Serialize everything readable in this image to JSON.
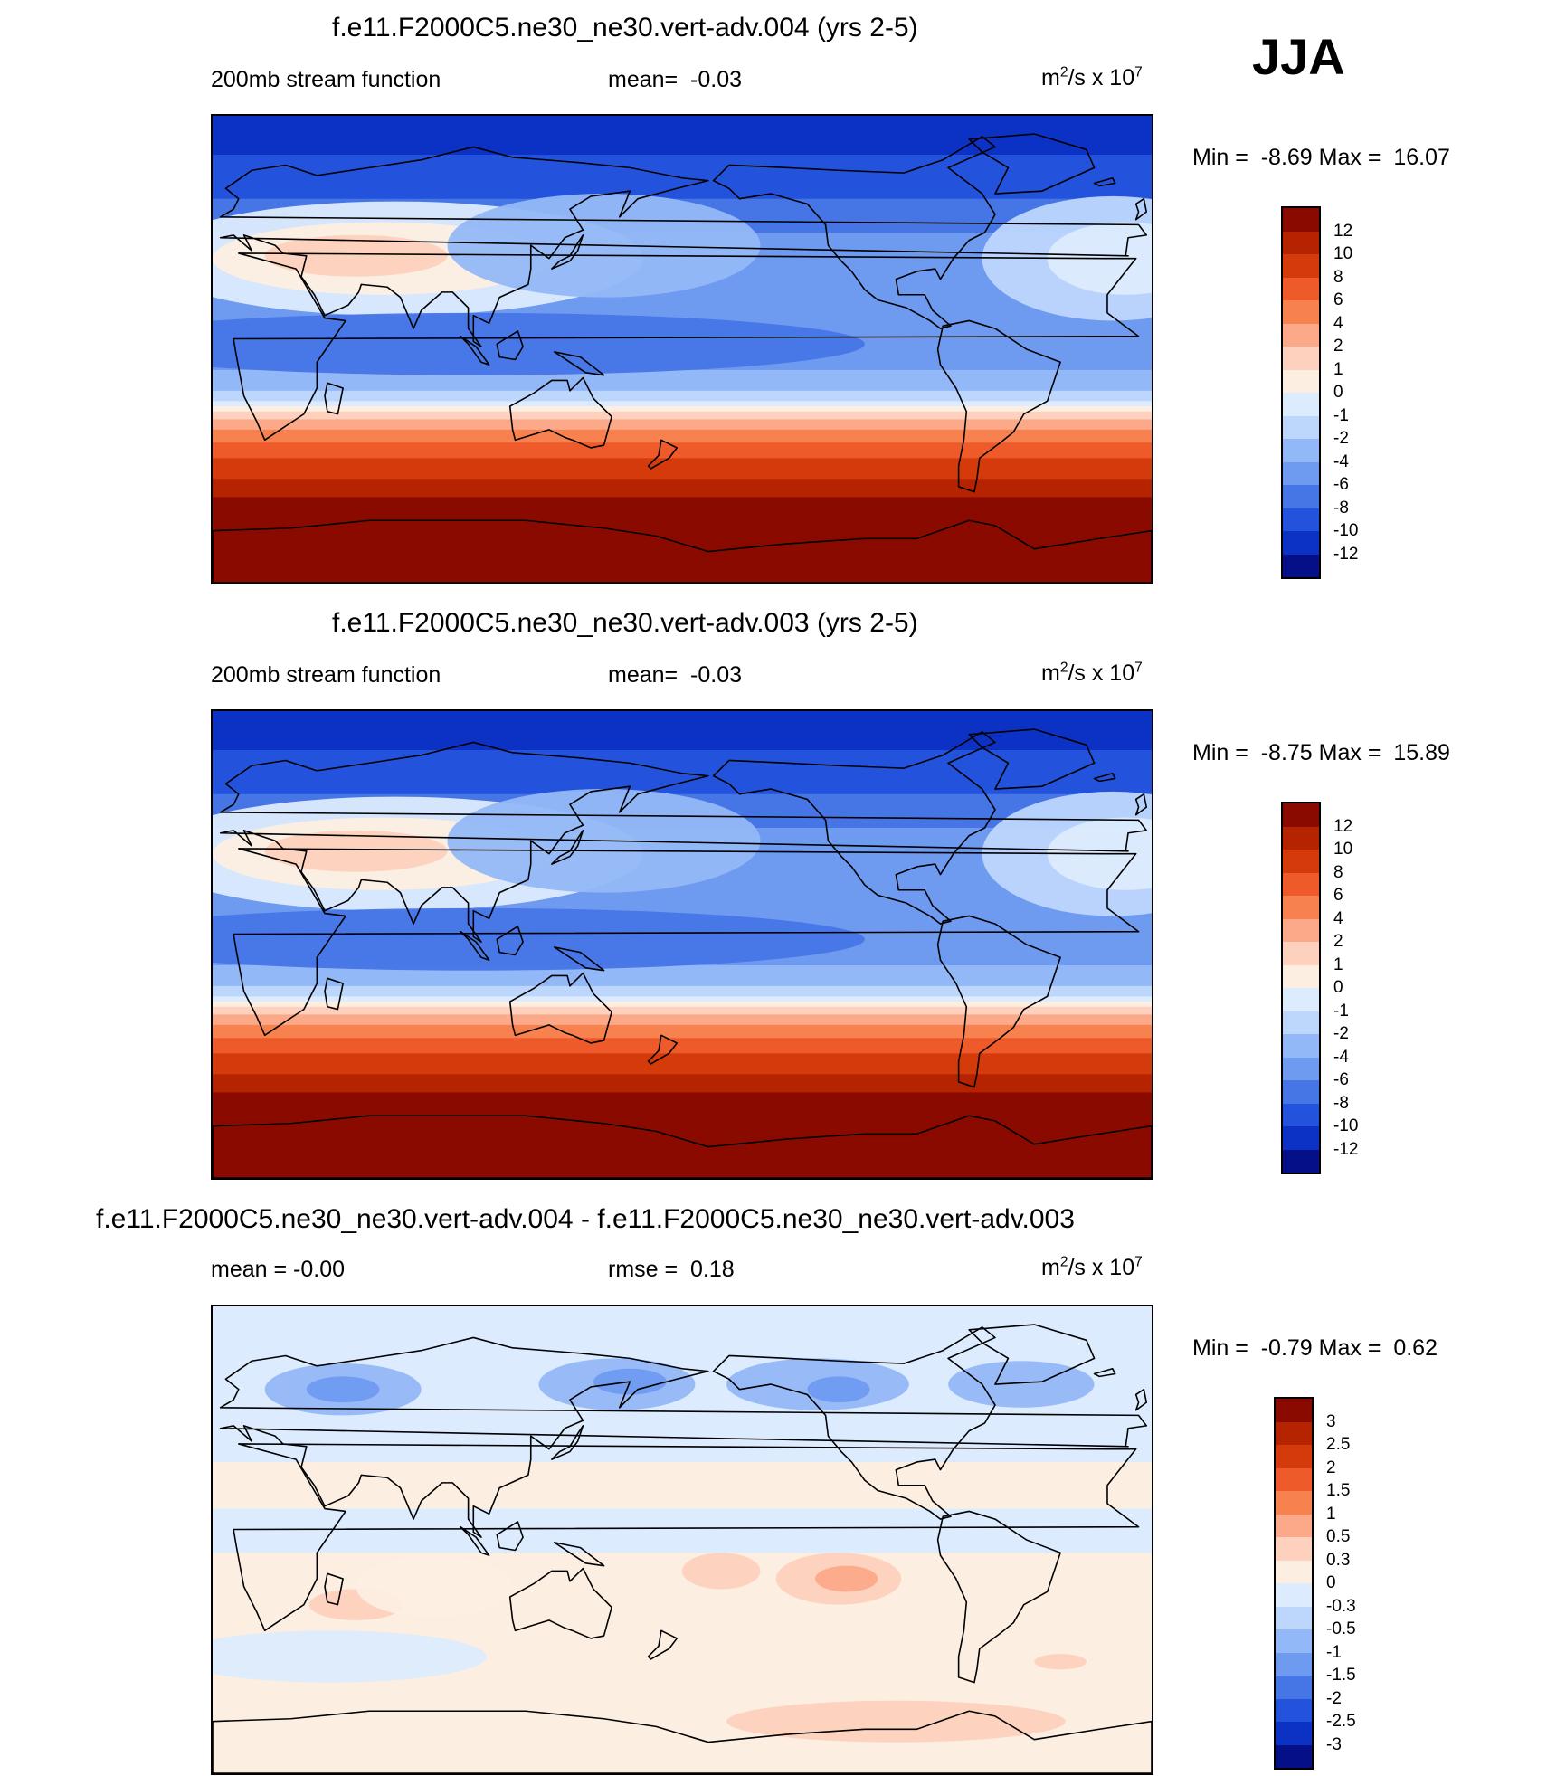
{
  "season": "JJA",
  "colors": {
    "ocean_blue": "#2f6fe8",
    "land_outline": "#000000"
  },
  "panels": [
    {
      "title": "f.e11.F2000C5.ne30_ne30.vert-adv.004 (yrs 2-5)",
      "left": "200mb stream function",
      "center_label": "mean=",
      "center_value": "-0.03",
      "units_base": "m",
      "units_exp1": "2",
      "units_mid": "/s x 10",
      "units_exp2": "7",
      "min_label": "Min =",
      "min": "-8.69",
      "max_label": "Max =",
      "max": "16.07",
      "colorbar": {
        "ticks": [
          "12",
          "10",
          "8",
          "6",
          "4",
          "2",
          "1",
          "0",
          "-1",
          "-2",
          "-4",
          "-6",
          "-8",
          "-10",
          "-12"
        ],
        "colors": [
          "#8b0a00",
          "#b52300",
          "#d53a0a",
          "#ee5a2a",
          "#f8824f",
          "#fca98a",
          "#fdd1bd",
          "#fdeee2",
          "#dcebfd",
          "#bdd6fc",
          "#93b8f7",
          "#6e9af0",
          "#4675e6",
          "#2353dc",
          "#0b32c4",
          "#050f88"
        ]
      },
      "bands": [
        {
          "lat_top": 90,
          "color": "#0b32c4"
        },
        {
          "lat_top": 75,
          "color": "#2353dc"
        },
        {
          "lat_top": 58,
          "color": "#4675e6"
        },
        {
          "lat_top": 45,
          "color": "#6e9af0"
        },
        {
          "lat_top": 15,
          "color": "#6e9af0"
        },
        {
          "lat_top": -8,
          "color": "#93b8f7"
        },
        {
          "lat_top": -16,
          "color": "#bdd6fc"
        },
        {
          "lat_top": -20,
          "color": "#dcebfd"
        },
        {
          "lat_top": -22,
          "color": "#fdeee2"
        },
        {
          "lat_top": -24,
          "color": "#fdd1bd"
        },
        {
          "lat_top": -27,
          "color": "#fca98a"
        },
        {
          "lat_top": -31,
          "color": "#f8824f"
        },
        {
          "lat_top": -36,
          "color": "#ee5a2a"
        },
        {
          "lat_top": -42,
          "color": "#d53a0a"
        },
        {
          "lat_top": -50,
          "color": "#b52300"
        },
        {
          "lat_top": -57,
          "color": "#8b0a00"
        }
      ]
    },
    {
      "title": "f.e11.F2000C5.ne30_ne30.vert-adv.003 (yrs 2-5)",
      "left": "200mb stream function",
      "center_label": "mean=",
      "center_value": "-0.03",
      "units_base": "m",
      "units_exp1": "2",
      "units_mid": "/s x 10",
      "units_exp2": "7",
      "min_label": "Min =",
      "min": "-8.75",
      "max_label": "Max =",
      "max": "15.89",
      "colorbar": {
        "ticks": [
          "12",
          "10",
          "8",
          "6",
          "4",
          "2",
          "1",
          "0",
          "-1",
          "-2",
          "-4",
          "-6",
          "-8",
          "-10",
          "-12"
        ],
        "colors": [
          "#8b0a00",
          "#b52300",
          "#d53a0a",
          "#ee5a2a",
          "#f8824f",
          "#fca98a",
          "#fdd1bd",
          "#fdeee2",
          "#dcebfd",
          "#bdd6fc",
          "#93b8f7",
          "#6e9af0",
          "#4675e6",
          "#2353dc",
          "#0b32c4",
          "#050f88"
        ]
      },
      "bands": [
        {
          "lat_top": 90,
          "color": "#0b32c4"
        },
        {
          "lat_top": 75,
          "color": "#2353dc"
        },
        {
          "lat_top": 58,
          "color": "#4675e6"
        },
        {
          "lat_top": 45,
          "color": "#6e9af0"
        },
        {
          "lat_top": 15,
          "color": "#6e9af0"
        },
        {
          "lat_top": -8,
          "color": "#93b8f7"
        },
        {
          "lat_top": -16,
          "color": "#bdd6fc"
        },
        {
          "lat_top": -20,
          "color": "#dcebfd"
        },
        {
          "lat_top": -22,
          "color": "#fdeee2"
        },
        {
          "lat_top": -24,
          "color": "#fdd1bd"
        },
        {
          "lat_top": -27,
          "color": "#fca98a"
        },
        {
          "lat_top": -31,
          "color": "#f8824f"
        },
        {
          "lat_top": -36,
          "color": "#ee5a2a"
        },
        {
          "lat_top": -42,
          "color": "#d53a0a"
        },
        {
          "lat_top": -50,
          "color": "#b52300"
        },
        {
          "lat_top": -57,
          "color": "#8b0a00"
        }
      ]
    },
    {
      "title": "f.e11.F2000C5.ne30_ne30.vert-adv.004 - f.e11.F2000C5.ne30_ne30.vert-adv.003",
      "left": "mean =  -0.00",
      "center_label": "rmse =",
      "center_value": "0.18",
      "units_base": "m",
      "units_exp1": "2",
      "units_mid": "/s x 10",
      "units_exp2": "7",
      "min_label": "Min =",
      "min": "-0.79",
      "max_label": "Max =",
      "max": "0.62",
      "colorbar": {
        "ticks": [
          "3",
          "2.5",
          "2",
          "1.5",
          "1",
          "0.5",
          "0.3",
          "0",
          "-0.3",
          "-0.5",
          "-1",
          "-1.5",
          "-2",
          "-2.5",
          "-3"
        ],
        "colors": [
          "#8b0a00",
          "#b52300",
          "#d53a0a",
          "#ee5a2a",
          "#f8824f",
          "#fca98a",
          "#fdd1bd",
          "#fdeee2",
          "#dcebfd",
          "#bdd6fc",
          "#93b8f7",
          "#6e9af0",
          "#4675e6",
          "#2353dc",
          "#0b32c4",
          "#050f88"
        ]
      },
      "bands": [
        {
          "lat_top": 90,
          "color": "#dcebfd"
        },
        {
          "lat_top": 30,
          "color": "#fdeee2"
        },
        {
          "lat_top": 12,
          "color": "#dcebfd"
        },
        {
          "lat_top": -5,
          "color": "#fdeee2"
        },
        {
          "lat_top": -10,
          "color": "#fdeee2"
        }
      ]
    }
  ]
}
